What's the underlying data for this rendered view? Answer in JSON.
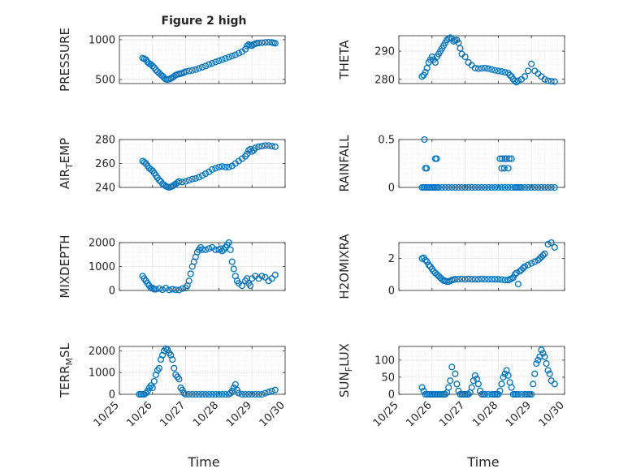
{
  "figure": {
    "title": "Figure 2 high",
    "xlabel": "Time",
    "xticks": [
      "10/25",
      "10/26",
      "10/27",
      "10/28",
      "10/29",
      "10/30"
    ],
    "marker_color": "#0072BD"
  },
  "chart_data": [
    {
      "type": "scatter",
      "name": "pressure",
      "ylabel": "PRESSURE",
      "ylabel_sub": "",
      "title": "Figure 2 high",
      "xlabel": "",
      "xlim": [
        25.0,
        30.0
      ],
      "ylim": [
        450,
        1050
      ],
      "yticks": [
        500,
        1000
      ],
      "yticklabels": [
        "500",
        "1000"
      ],
      "grid": true,
      "minor_grid": true,
      "x": [
        25.7,
        25.75,
        25.8,
        25.85,
        25.9,
        25.95,
        26.0,
        26.05,
        26.1,
        26.15,
        26.2,
        26.25,
        26.3,
        26.35,
        26.4,
        26.45,
        26.5,
        26.55,
        26.6,
        26.65,
        26.7,
        26.75,
        26.8,
        26.85,
        26.9,
        26.95,
        27.0,
        27.1,
        27.2,
        27.3,
        27.4,
        27.5,
        27.6,
        27.7,
        27.8,
        27.9,
        28.0,
        28.1,
        28.2,
        28.3,
        28.4,
        28.5,
        28.6,
        28.7,
        28.8,
        28.85,
        28.9,
        28.95,
        29.0,
        29.05,
        29.1,
        29.15,
        29.2,
        29.3,
        29.4,
        29.5,
        29.6,
        29.65,
        29.7
      ],
      "y": [
        770,
        760,
        750,
        720,
        700,
        690,
        670,
        650,
        620,
        600,
        580,
        560,
        545,
        520,
        505,
        500,
        505,
        515,
        525,
        540,
        555,
        565,
        570,
        575,
        580,
        590,
        600,
        608,
        615,
        625,
        640,
        655,
        670,
        690,
        705,
        720,
        735,
        750,
        765,
        780,
        795,
        810,
        830,
        850,
        880,
        920,
        940,
        930,
        925,
        940,
        950,
        955,
        958,
        962,
        966,
        968,
        965,
        960,
        955
      ]
    },
    {
      "type": "scatter",
      "name": "theta",
      "ylabel": "THETA",
      "ylabel_sub": "",
      "xlim": [
        25.0,
        30.0
      ],
      "ylim": [
        278.5,
        295.5
      ],
      "yticks": [
        280,
        290
      ],
      "yticklabels": [
        "280",
        "290"
      ],
      "grid": true,
      "minor_grid": true,
      "x": [
        25.7,
        25.75,
        25.8,
        25.85,
        25.9,
        25.95,
        26.0,
        26.05,
        26.1,
        26.15,
        26.2,
        26.25,
        26.3,
        26.35,
        26.4,
        26.45,
        26.5,
        26.55,
        26.6,
        26.65,
        26.7,
        26.75,
        26.8,
        26.85,
        26.9,
        27.0,
        27.1,
        27.2,
        27.3,
        27.4,
        27.5,
        27.6,
        27.7,
        27.8,
        27.9,
        28.0,
        28.1,
        28.2,
        28.3,
        28.35,
        28.4,
        28.45,
        28.5,
        28.55,
        28.6,
        28.7,
        28.8,
        28.9,
        29.0,
        29.1,
        29.2,
        29.3,
        29.4,
        29.5,
        29.6,
        29.7
      ],
      "y": [
        281,
        281.5,
        282.5,
        284,
        286,
        287,
        288,
        287,
        286,
        288,
        289,
        290,
        291,
        292,
        293,
        294,
        294.5,
        294.8,
        294.5,
        293.5,
        293.8,
        294,
        293,
        291,
        289,
        288,
        286,
        285,
        284,
        283.8,
        283.9,
        284,
        283.8,
        283.5,
        283.2,
        283,
        282.8,
        282.5,
        282.2,
        281.5,
        281,
        280,
        279.5,
        279,
        279.5,
        280,
        281,
        283,
        285.5,
        283,
        282,
        281,
        280,
        279.5,
        279.3,
        279.2
      ]
    },
    {
      "type": "scatter",
      "name": "air_temp",
      "ylabel": "AIR",
      "ylabel_sub": "T",
      "ylabel_suffix": "EMP",
      "xlim": [
        25.0,
        30.0
      ],
      "ylim": [
        240,
        280
      ],
      "yticks": [
        240,
        260,
        280
      ],
      "yticklabels": [
        "240",
        "260",
        "280"
      ],
      "grid": true,
      "minor_grid": true,
      "x": [
        25.7,
        25.75,
        25.8,
        25.85,
        25.9,
        25.95,
        26.0,
        26.05,
        26.1,
        26.15,
        26.2,
        26.25,
        26.3,
        26.35,
        26.4,
        26.45,
        26.5,
        26.55,
        26.6,
        26.65,
        26.7,
        26.75,
        26.8,
        26.9,
        27.0,
        27.1,
        27.2,
        27.3,
        27.4,
        27.5,
        27.6,
        27.7,
        27.8,
        27.9,
        28.0,
        28.1,
        28.2,
        28.3,
        28.4,
        28.5,
        28.6,
        28.7,
        28.8,
        28.85,
        28.9,
        28.95,
        29.0,
        29.05,
        29.1,
        29.2,
        29.3,
        29.4,
        29.5,
        29.6,
        29.7
      ],
      "y": [
        262,
        261,
        260,
        258,
        256,
        255,
        254,
        252,
        250,
        248,
        246,
        245,
        243,
        242,
        241,
        240.5,
        240,
        240.5,
        241,
        242,
        243,
        244,
        245,
        244.5,
        245,
        246,
        247,
        247.5,
        248.5,
        250,
        251.5,
        253,
        255,
        256,
        257,
        257.5,
        257,
        257,
        258,
        260,
        262,
        264,
        266,
        268,
        271,
        272,
        270,
        271,
        273,
        274,
        274.5,
        275,
        275,
        274.5,
        274
      ]
    },
    {
      "type": "scatter",
      "name": "rainfall",
      "ylabel": "RAINFALL",
      "ylabel_sub": "",
      "xlim": [
        25.0,
        30.0
      ],
      "ylim": [
        0,
        0.5
      ],
      "yticks": [
        0,
        0.5
      ],
      "yticklabels": [
        "0",
        "0.5"
      ],
      "grid": true,
      "minor_grid": true,
      "x": [
        25.7,
        25.75,
        25.8,
        25.85,
        25.9,
        25.95,
        26.0,
        26.05,
        26.1,
        26.15,
        26.2,
        26.3,
        26.4,
        26.5,
        26.6,
        26.7,
        26.8,
        26.9,
        27.0,
        27.1,
        27.2,
        27.3,
        27.4,
        27.5,
        27.6,
        27.7,
        27.8,
        27.9,
        28.0,
        28.1,
        28.2,
        28.3,
        28.4,
        28.5,
        28.55,
        28.6,
        28.65,
        28.7,
        28.8,
        28.9,
        29.0,
        29.1,
        29.2,
        29.3,
        29.4,
        29.5,
        29.6,
        29.7,
        25.77,
        25.8,
        25.84,
        26.1,
        26.14,
        28.05,
        28.1,
        28.12,
        28.18,
        28.2,
        28.25,
        28.3,
        28.33,
        28.4
      ],
      "y": [
        0,
        0,
        0,
        0,
        0,
        0,
        0,
        0,
        0,
        0,
        0,
        0,
        0,
        0,
        0,
        0,
        0,
        0,
        0,
        0,
        0,
        0,
        0,
        0,
        0,
        0,
        0,
        0,
        0,
        0,
        0,
        0,
        0,
        0,
        0,
        0,
        0,
        0,
        0,
        0,
        0,
        0,
        0,
        0,
        0,
        0,
        0,
        0,
        0.5,
        0.2,
        0.2,
        0.3,
        0.3,
        0.3,
        0.2,
        0.3,
        0.2,
        0.3,
        0.3,
        0.2,
        0.3,
        0.3
      ]
    },
    {
      "type": "scatter",
      "name": "mixdepth",
      "ylabel": "MIXDEPTH",
      "ylabel_sub": "",
      "xlim": [
        25.0,
        30.0
      ],
      "ylim": [
        0,
        2000
      ],
      "yticks": [
        0,
        1000,
        2000
      ],
      "yticklabels": [
        "0",
        "1000",
        "2000"
      ],
      "grid": true,
      "minor_grid": true,
      "x": [
        25.7,
        25.75,
        25.8,
        25.85,
        25.9,
        25.95,
        26.0,
        26.05,
        26.1,
        26.2,
        26.3,
        26.4,
        26.5,
        26.6,
        26.7,
        26.8,
        26.9,
        27.0,
        27.05,
        27.1,
        27.15,
        27.2,
        27.25,
        27.3,
        27.35,
        27.4,
        27.45,
        27.5,
        27.6,
        27.7,
        27.8,
        27.9,
        28.0,
        28.05,
        28.1,
        28.15,
        28.2,
        28.25,
        28.3,
        28.35,
        28.4,
        28.45,
        28.5,
        28.55,
        28.6,
        28.7,
        28.8,
        28.85,
        28.9,
        28.95,
        29.0,
        29.1,
        29.2,
        29.3,
        29.4,
        29.5,
        29.6,
        29.7
      ],
      "y": [
        600,
        500,
        400,
        300,
        200,
        100,
        100,
        50,
        50,
        80,
        30,
        100,
        20,
        50,
        30,
        20,
        80,
        100,
        200,
        400,
        700,
        1000,
        1200,
        1400,
        1600,
        1700,
        1800,
        1700,
        1700,
        1750,
        1800,
        1700,
        1700,
        1750,
        1650,
        1700,
        1800,
        1900,
        2000,
        1700,
        1200,
        900,
        600,
        400,
        300,
        200,
        400,
        500,
        300,
        200,
        500,
        600,
        500,
        600,
        550,
        400,
        500,
        650
      ]
    },
    {
      "type": "scatter",
      "name": "h2omixra",
      "ylabel": "H2OMIXRA",
      "ylabel_sub": "",
      "xlim": [
        25.0,
        30.0
      ],
      "ylim": [
        0,
        3
      ],
      "yticks": [
        0,
        2
      ],
      "yticklabels": [
        "0",
        "2"
      ],
      "grid": true,
      "minor_grid": true,
      "x": [
        25.7,
        25.75,
        25.8,
        25.85,
        25.9,
        25.95,
        26.0,
        26.05,
        26.1,
        26.15,
        26.2,
        26.25,
        26.3,
        26.35,
        26.4,
        26.45,
        26.5,
        26.55,
        26.6,
        26.65,
        26.7,
        26.8,
        26.9,
        27.0,
        27.1,
        27.2,
        27.3,
        27.4,
        27.5,
        27.6,
        27.7,
        27.8,
        27.9,
        28.0,
        28.1,
        28.2,
        28.3,
        28.35,
        28.4,
        28.45,
        28.5,
        28.55,
        28.6,
        28.65,
        28.7,
        28.75,
        28.8,
        28.9,
        29.0,
        29.1,
        29.2,
        29.25,
        29.3,
        29.35,
        29.4,
        29.5,
        29.6,
        29.7
      ],
      "y": [
        2.0,
        2.05,
        1.9,
        1.8,
        1.6,
        1.5,
        1.35,
        1.2,
        1.1,
        1.0,
        0.9,
        0.8,
        0.7,
        0.62,
        0.6,
        0.55,
        0.55,
        0.6,
        0.65,
        0.68,
        0.7,
        0.7,
        0.72,
        0.7,
        0.72,
        0.7,
        0.7,
        0.7,
        0.72,
        0.7,
        0.7,
        0.7,
        0.7,
        0.7,
        0.68,
        0.65,
        0.65,
        0.7,
        0.75,
        0.8,
        1.0,
        1.1,
        0.4,
        1.2,
        1.3,
        1.4,
        1.5,
        1.6,
        1.7,
        1.8,
        1.9,
        2.0,
        2.1,
        2.2,
        2.3,
        2.9,
        3.0,
        2.7
      ]
    },
    {
      "type": "scatter",
      "name": "terr_msl",
      "ylabel": "TERR",
      "ylabel_sub": "M",
      "ylabel_suffix": "SL",
      "xlim": [
        25.0,
        30.0
      ],
      "ylim": [
        0,
        2200
      ],
      "yticks": [
        0,
        1000,
        2000
      ],
      "yticklabels": [
        "0",
        "1000",
        "2000"
      ],
      "grid": true,
      "minor_grid": true,
      "x": [
        25.6,
        25.65,
        25.7,
        25.75,
        25.8,
        25.85,
        25.9,
        25.95,
        26.0,
        26.05,
        26.1,
        26.15,
        26.2,
        26.25,
        26.3,
        26.35,
        26.4,
        26.45,
        26.5,
        26.55,
        26.6,
        26.65,
        26.7,
        26.75,
        26.8,
        26.85,
        26.9,
        26.95,
        27.0,
        27.1,
        27.2,
        27.3,
        27.4,
        27.5,
        27.6,
        27.7,
        27.8,
        27.9,
        28.0,
        28.1,
        28.2,
        28.3,
        28.35,
        28.4,
        28.45,
        28.5,
        28.55,
        28.6,
        28.7,
        28.8,
        28.9,
        29.0,
        29.1,
        29.2,
        29.3,
        29.4,
        29.5,
        29.6,
        29.7
      ],
      "y": [
        0,
        0,
        0,
        0,
        50,
        150,
        300,
        400,
        300,
        600,
        900,
        1100,
        1200,
        1600,
        1800,
        2000,
        2100,
        2050,
        1900,
        1800,
        1600,
        1200,
        900,
        800,
        700,
        300,
        200,
        50,
        0,
        0,
        0,
        0,
        0,
        0,
        0,
        0,
        0,
        0,
        0,
        0,
        0,
        0,
        50,
        150,
        300,
        450,
        200,
        50,
        0,
        0,
        0,
        0,
        0,
        0,
        0,
        50,
        100,
        150,
        200
      ]
    },
    {
      "type": "scatter",
      "name": "sun_flux",
      "ylabel": "SUN",
      "ylabel_sub": "F",
      "ylabel_suffix": "LUX",
      "xlim": [
        25.0,
        30.0
      ],
      "ylim": [
        0,
        140
      ],
      "yticks": [
        0,
        50,
        100
      ],
      "yticklabels": [
        "0",
        "50",
        "100"
      ],
      "grid": true,
      "minor_grid": true,
      "x": [
        25.7,
        25.75,
        25.8,
        25.85,
        25.9,
        25.95,
        26.0,
        26.05,
        26.1,
        26.15,
        26.2,
        26.25,
        26.3,
        26.35,
        26.4,
        26.45,
        26.5,
        26.55,
        26.6,
        26.7,
        26.75,
        26.8,
        26.85,
        26.9,
        26.95,
        27.0,
        27.05,
        27.1,
        27.15,
        27.2,
        27.25,
        27.3,
        27.35,
        27.4,
        27.45,
        27.5,
        27.55,
        27.6,
        27.7,
        27.8,
        27.85,
        27.9,
        27.95,
        28.0,
        28.05,
        28.1,
        28.15,
        28.2,
        28.25,
        28.3,
        28.35,
        28.4,
        28.45,
        28.5,
        28.55,
        28.6,
        28.7,
        28.8,
        28.85,
        28.9,
        28.95,
        29.0,
        29.05,
        29.1,
        29.15,
        29.2,
        29.25,
        29.3,
        29.35,
        29.4,
        29.45,
        29.5,
        29.55,
        29.6,
        29.7
      ],
      "y": [
        20,
        10,
        0,
        0,
        0,
        0,
        0,
        0,
        0,
        0,
        0,
        0,
        0,
        0,
        0,
        5,
        20,
        40,
        80,
        60,
        30,
        10,
        0,
        0,
        0,
        0,
        0,
        0,
        5,
        20,
        40,
        55,
        45,
        30,
        10,
        0,
        0,
        0,
        0,
        0,
        0,
        0,
        0,
        0,
        10,
        30,
        50,
        60,
        70,
        55,
        35,
        20,
        0,
        0,
        0,
        0,
        0,
        0,
        0,
        0,
        0,
        0,
        30,
        60,
        90,
        100,
        110,
        130,
        120,
        110,
        90,
        70,
        60,
        40,
        30
      ]
    }
  ]
}
